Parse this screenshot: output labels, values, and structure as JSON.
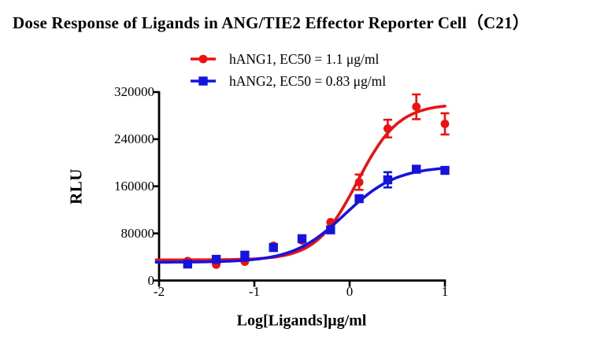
{
  "title": "Dose Response of Ligands in ANG/TIE2 Effector Reporter Cell（C21）",
  "legend": [
    {
      "label": "hANG1, EC50 = 1.1 μg/ml",
      "color": "#ED1111",
      "marker": "circle"
    },
    {
      "label": "hANG2, EC50 = 0.83 μg/ml",
      "color": "#1513E0",
      "marker": "square"
    }
  ],
  "chart_data": {
    "type": "scatter",
    "title": "Dose Response of Ligands in ANG/TIE2 Effector Reporter Cell（C21）",
    "xlabel": "Log[Ligands]μg/ml",
    "ylabel": "RLU",
    "xlim": [
      -2,
      1
    ],
    "ylim": [
      0,
      320000
    ],
    "x_ticks": [
      "-2",
      "-1",
      "0",
      "1"
    ],
    "y_ticks": [
      "0",
      "80000",
      "160000",
      "240000",
      "320000"
    ],
    "grid": false,
    "legend_position": "top-center",
    "x": [
      -1.7,
      -1.4,
      -1.1,
      -0.8,
      -0.5,
      -0.2,
      0.1,
      0.4,
      0.7,
      1.0
    ],
    "series": [
      {
        "name": "hANG1",
        "ec50_ug_ml": 1.1,
        "color": "#ED1111",
        "marker": "circle",
        "values": [
          33000,
          27000,
          32000,
          59000,
          68000,
          99000,
          167000,
          258000,
          295000,
          266000
        ],
        "errors": [
          0,
          0,
          0,
          0,
          0,
          0,
          13000,
          15000,
          21000,
          18000
        ],
        "fit": {
          "model": "4PL",
          "bottom": 35000,
          "top": 300000,
          "logEC50": 0.08,
          "hill": 2.0
        }
      },
      {
        "name": "hANG2",
        "ec50_ug_ml": 0.83,
        "color": "#1513E0",
        "marker": "square",
        "values": [
          28000,
          36000,
          43000,
          56000,
          71000,
          86000,
          139000,
          171000,
          189000,
          187000
        ],
        "errors": [
          0,
          0,
          0,
          0,
          0,
          0,
          0,
          13000,
          0,
          0
        ],
        "fit": {
          "model": "4PL",
          "bottom": 31000,
          "top": 194000,
          "logEC50": -0.05,
          "hill": 1.6
        }
      }
    ]
  }
}
